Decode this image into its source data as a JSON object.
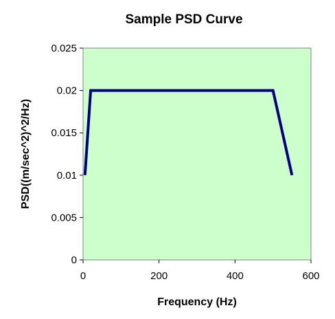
{
  "chart_data": {
    "type": "line",
    "title": "Sample PSD Curve",
    "xlabel": "Frequency (Hz)",
    "ylabel": "PSD((m/sec^2)^2/Hz)",
    "xlim": [
      0,
      600
    ],
    "ylim": [
      0,
      0.025
    ],
    "x_ticks": [
      "0",
      "200",
      "400",
      "600"
    ],
    "y_ticks": [
      "0",
      "0.005",
      "0.01",
      "0.015",
      "0.02",
      "0.025"
    ],
    "grid": false,
    "legend": "none",
    "series": [
      {
        "x": [
          5,
          20,
          500,
          550
        ],
        "y": [
          0.01,
          0.02,
          0.02,
          0.01
        ]
      }
    ],
    "colors": {
      "plot_background": "#ccffcc",
      "line": "#000080",
      "axis": "#808080"
    }
  }
}
